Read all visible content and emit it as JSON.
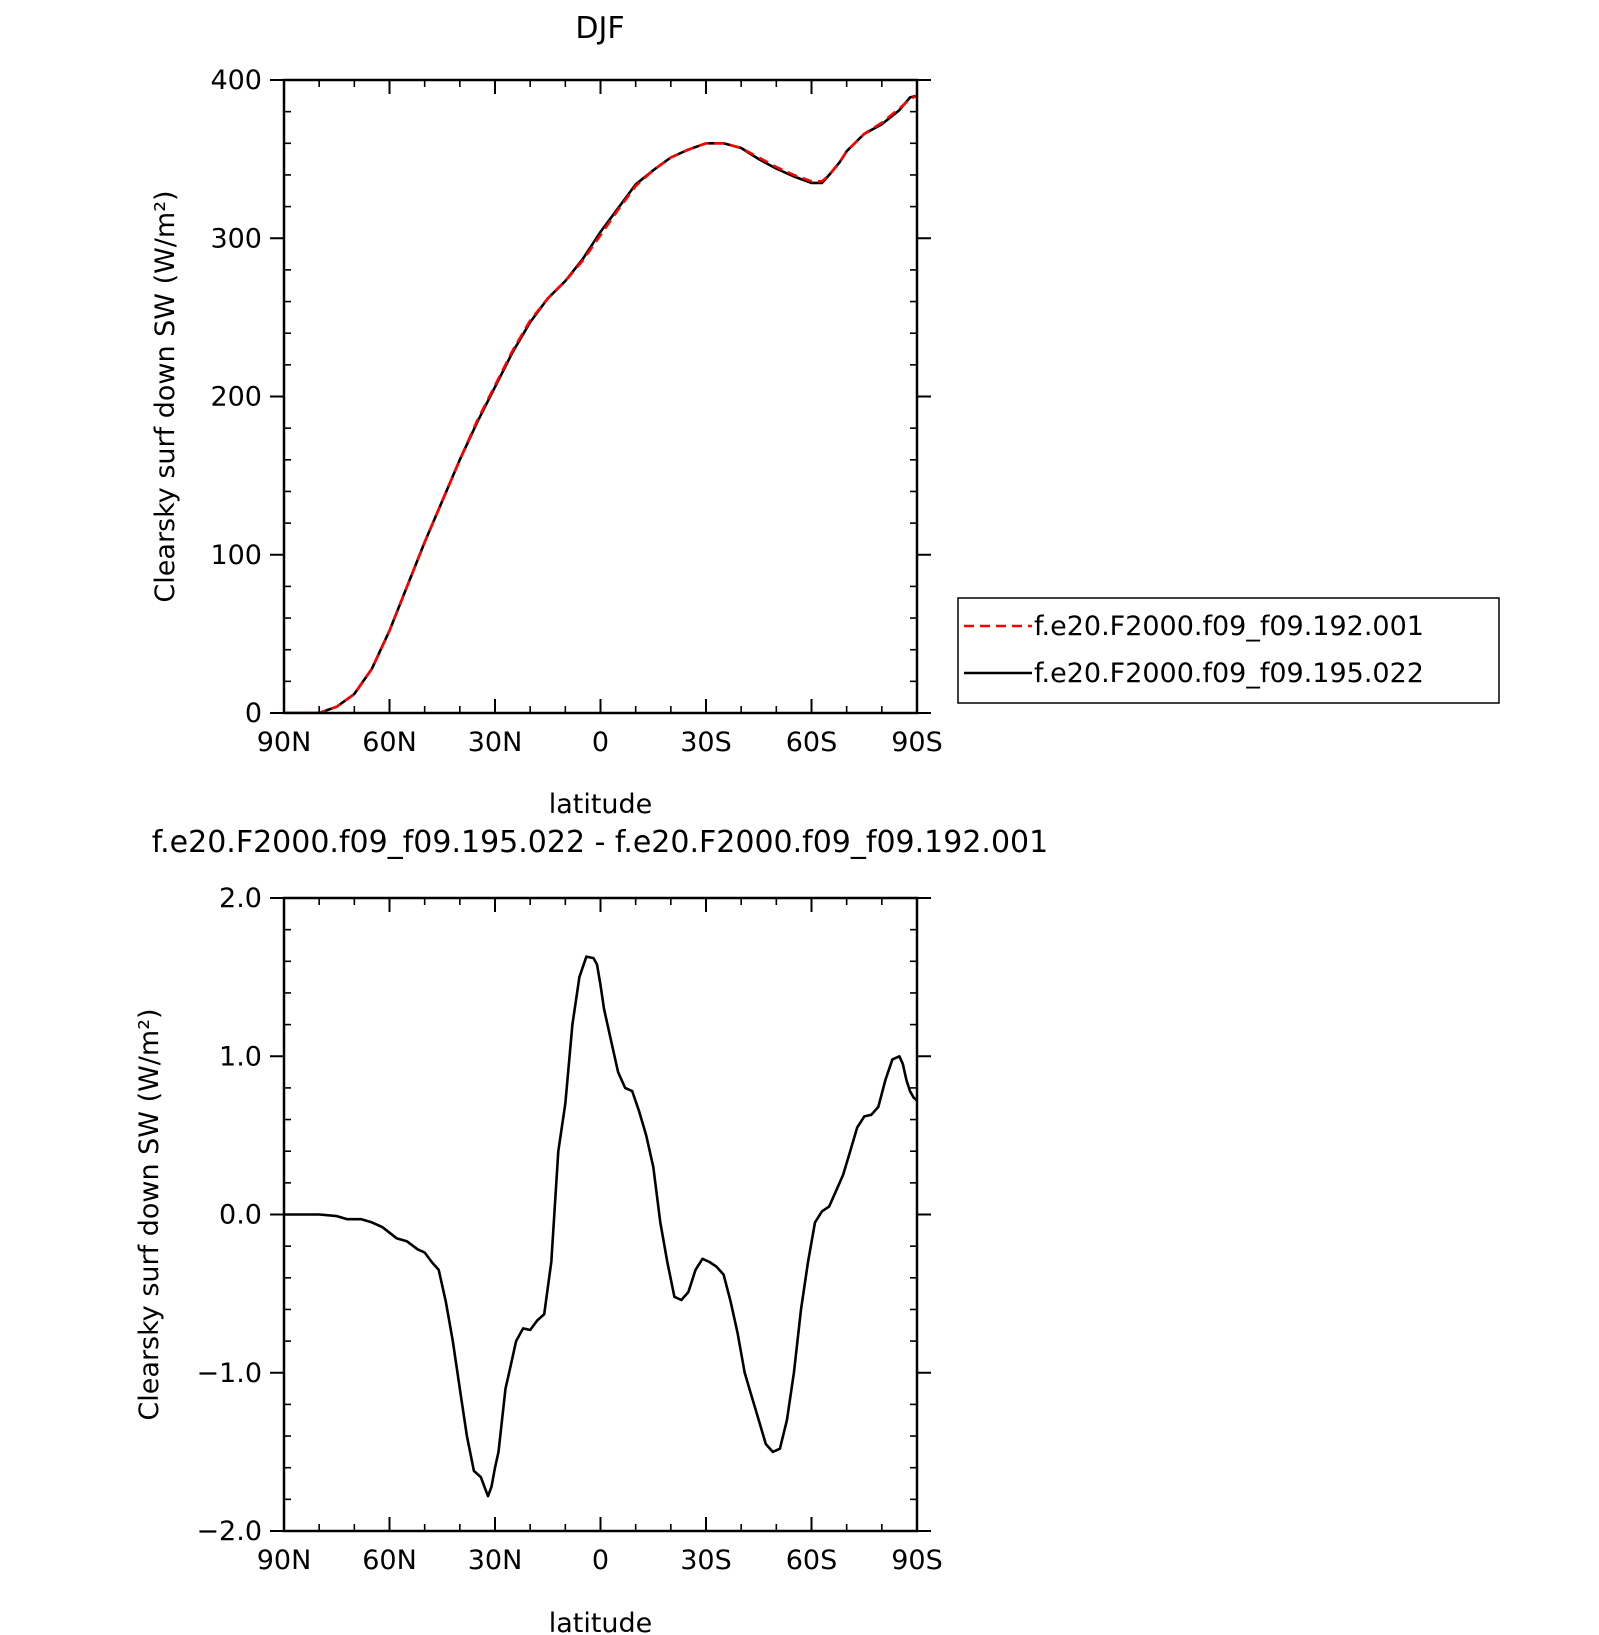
{
  "chart_data": [
    {
      "type": "line",
      "title": "DJF",
      "xlabel": "latitude",
      "ylabel": "Clearsky surf down SW (W/m²)",
      "xlim": [
        90,
        -90
      ],
      "ylim": [
        0,
        400
      ],
      "xticks": [
        90,
        60,
        30,
        0,
        -30,
        -60,
        -90
      ],
      "xtick_labels": [
        "90N",
        "60N",
        "30N",
        "0",
        "30S",
        "60S",
        "90S"
      ],
      "yticks": [
        0,
        100,
        200,
        300,
        400
      ],
      "ytick_labels": [
        "0",
        "100",
        "200",
        "300",
        "400"
      ],
      "grid": false,
      "legend_position": "right",
      "x": [
        90,
        80,
        75,
        70,
        65,
        60,
        55,
        50,
        45,
        40,
        35,
        30,
        25,
        20,
        15,
        10,
        5,
        0,
        -5,
        -10,
        -15,
        -20,
        -25,
        -30,
        -35,
        -40,
        -45,
        -50,
        -55,
        -60,
        -63,
        -65,
        -68,
        -70,
        -75,
        -80,
        -85,
        -88,
        -90
      ],
      "series": [
        {
          "name": "f.e20.F2000.f09_f09.192.001",
          "color": "#ff0000",
          "dash": "dashed",
          "values": [
            0,
            0,
            4,
            12,
            28,
            52,
            80,
            108,
            134,
            160,
            185,
            207,
            229,
            248,
            262,
            273,
            286,
            302,
            318,
            333,
            343,
            351,
            356,
            360,
            360,
            357,
            351,
            345,
            340,
            336,
            336,
            340,
            348,
            355,
            366,
            373,
            382,
            388,
            390
          ]
        },
        {
          "name": "f.e20.F2000.f09_f09.195.022",
          "color": "#000000",
          "dash": "solid",
          "values": [
            0,
            0,
            4,
            12,
            28,
            52,
            80,
            108,
            134,
            160,
            184,
            206,
            228,
            247,
            262,
            273,
            287,
            304,
            319,
            334,
            343,
            351,
            356,
            360,
            360,
            357,
            350,
            344,
            339,
            335,
            335,
            340,
            348,
            355,
            366,
            372,
            381,
            389,
            390
          ]
        }
      ]
    },
    {
      "type": "line",
      "title": "f.e20.F2000.f09_f09.195.022 - f.e20.F2000.f09_f09.192.001",
      "xlabel": "latitude",
      "ylabel": "Clearsky surf down SW (W/m²)",
      "xlim": [
        90,
        -90
      ],
      "ylim": [
        -2.0,
        2.0
      ],
      "xticks": [
        90,
        60,
        30,
        0,
        -30,
        -60,
        -90
      ],
      "xtick_labels": [
        "90N",
        "60N",
        "30N",
        "0",
        "30S",
        "60S",
        "90S"
      ],
      "yticks": [
        -2.0,
        -1.0,
        0.0,
        1.0,
        2.0
      ],
      "ytick_labels": [
        "−2.0",
        "−1.0",
        "0.0",
        "1.0",
        "2.0"
      ],
      "grid": false,
      "series": [
        {
          "color": "#000000",
          "x": [
            90,
            80,
            75,
            72,
            68,
            65,
            62,
            58,
            55,
            52,
            50,
            48,
            46,
            44,
            42,
            40,
            38,
            36,
            34,
            33,
            32,
            31,
            30,
            29,
            28,
            27,
            26,
            24,
            22,
            20,
            18,
            16,
            14,
            12,
            10,
            8,
            6,
            4,
            2,
            1,
            0,
            -1,
            -2,
            -3,
            -5,
            -7,
            -9,
            -11,
            -13,
            -15,
            -17,
            -19,
            -21,
            -23,
            -25,
            -27,
            -29,
            -31,
            -33,
            -35,
            -37,
            -39,
            -41,
            -43,
            -45,
            -47,
            -49,
            -51,
            -53,
            -55,
            -57,
            -59,
            -61,
            -63,
            -65,
            -67,
            -69,
            -71,
            -73,
            -75,
            -77,
            -79,
            -81,
            -83,
            -85,
            -86,
            -87,
            -88,
            -89,
            -90
          ],
          "values": [
            0,
            0,
            -0.01,
            -0.03,
            -0.03,
            -0.05,
            -0.08,
            -0.15,
            -0.17,
            -0.22,
            -0.24,
            -0.3,
            -0.35,
            -0.55,
            -0.8,
            -1.1,
            -1.4,
            -1.62,
            -1.66,
            -1.72,
            -1.78,
            -1.72,
            -1.6,
            -1.5,
            -1.3,
            -1.1,
            -1.0,
            -0.8,
            -0.72,
            -0.73,
            -0.67,
            -0.63,
            -0.3,
            0.4,
            0.7,
            1.2,
            1.5,
            1.63,
            1.62,
            1.58,
            1.45,
            1.3,
            1.2,
            1.1,
            0.9,
            0.8,
            0.78,
            0.65,
            0.5,
            0.3,
            -0.05,
            -0.3,
            -0.52,
            -0.54,
            -0.49,
            -0.35,
            -0.28,
            -0.3,
            -0.33,
            -0.38,
            -0.55,
            -0.75,
            -1.0,
            -1.15,
            -1.3,
            -1.45,
            -1.5,
            -1.48,
            -1.3,
            -1.0,
            -0.6,
            -0.3,
            -0.05,
            0.02,
            0.05,
            0.15,
            0.25,
            0.4,
            0.55,
            0.62,
            0.63,
            0.68,
            0.85,
            0.98,
            1.0,
            0.95,
            0.85,
            0.78,
            0.74,
            0.72
          ]
        }
      ]
    }
  ]
}
